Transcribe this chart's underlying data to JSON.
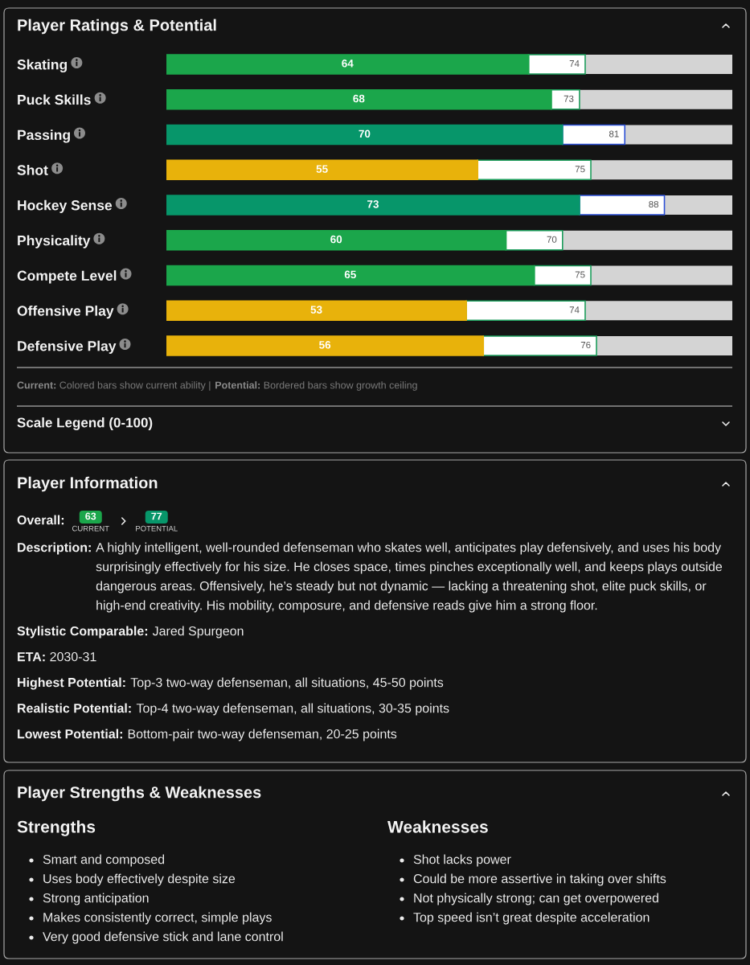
{
  "chart_data": [
    {
      "type": "bar",
      "orientation": "horizontal",
      "stacked": true,
      "title": "Player Ratings & Potential",
      "categories": [
        "Skating",
        "Puck Skills",
        "Passing",
        "Shot",
        "Hockey Sense",
        "Physicality",
        "Compete Level",
        "Offensive Play",
        "Defensive Play"
      ],
      "xlim": [
        0,
        100
      ],
      "tick_labels": "y",
      "series": [
        {
          "colors": [
            "#1ba64b",
            "#1ba64b",
            "#07966a",
            "#e8b20b",
            "#07966a",
            "#1ba64b",
            "#1ba64b",
            "#e8b20b",
            "#e8b20b"
          ],
          "values": [
            64,
            68,
            70,
            55,
            73,
            60,
            65,
            53,
            56
          ],
          "value_labels": [
            "64",
            "68",
            "70",
            "55",
            "73",
            "60",
            "65",
            "53",
            "56"
          ]
        },
        {
          "colors": [
            "#1d9e5c",
            "#1d9e5c",
            "#2b4fd6",
            "#1d9e5c",
            "#2b4fd6",
            "#1d9e5c",
            "#1d9e5c",
            "#1d9e5c",
            "#1d9e5c"
          ],
          "values": [
            10,
            5,
            11,
            20,
            15,
            10,
            10,
            21,
            20
          ]
        }
      ],
      "totals": [
        "74",
        "73",
        "81",
        "75",
        "88",
        "70",
        "75",
        "74",
        "76"
      ],
      "annotations": [
        "Current:",
        "Colored bars show current ability |",
        "Potential:",
        "Bordered bars show growth ceiling",
        "Scale Legend (0-100)"
      ]
    },
    {
      "type": "other",
      "title": "Player Information",
      "annotations": [
        "Overall:",
        "63",
        "CURRENT",
        "77",
        "POTENTIAL",
        "Description:",
        "A highly intelligent, well-rounded defenseman who skates well, anticipates play defensively, and uses his body surprisingly effectively for his size. He closes space, times pinches exceptionally well, and keeps plays outside dangerous areas. Offensively, he’s steady but not dynamic — lacking a threatening shot, elite puck skills, or high-end creativity. His mobility, composure, and defensive reads give him a strong floor.",
        "Stylistic Comparable:",
        "Jared Spurgeon",
        "ETA:",
        "2030-31",
        "Highest Potential:",
        "Top-3 two-way defenseman, all situations, 45-50 points",
        "Realistic Potential:",
        "Top-4 two-way defenseman, all situations, 30-35 points",
        "Lowest Potential:",
        "Bottom-pair two-way defenseman, 20-25 points"
      ]
    },
    {
      "type": "other",
      "title": "Player Strengths & Weaknesses",
      "subtitle": "Strengths",
      "annotations": [
        "Smart and composed",
        "Uses body effectively despite size",
        "Strong anticipation",
        "Makes consistently correct, simple plays",
        "Very good defensive stick and lane control"
      ]
    },
    {
      "type": "other",
      "subtitle": "Weaknesses",
      "annotations": [
        "Shot lacks power",
        "Could be more assertive in taking over shifts",
        "Not physically strong; can get overpowered",
        "Top speed isn’t great despite acceleration"
      ]
    }
  ]
}
